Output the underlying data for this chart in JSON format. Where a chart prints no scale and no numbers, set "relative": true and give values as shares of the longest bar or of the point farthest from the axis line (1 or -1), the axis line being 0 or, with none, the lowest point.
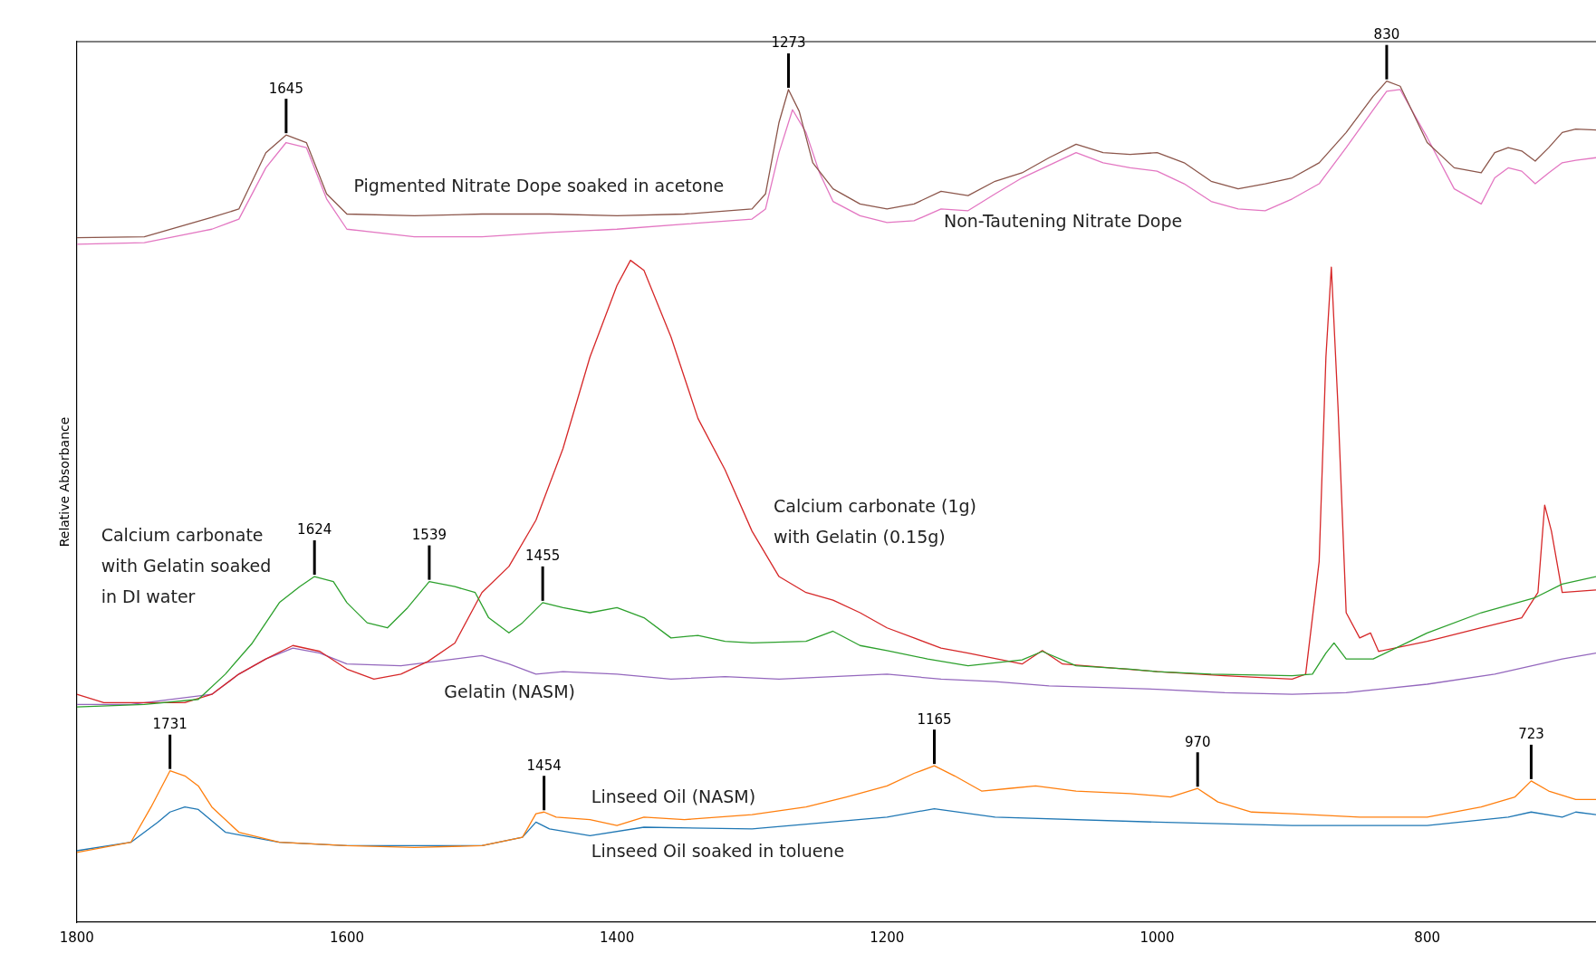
{
  "chart_data": {
    "type": "line",
    "relative": true,
    "ylabel": "Relative Absorbance",
    "xlim": [
      1800,
      675
    ],
    "xticks": [
      1800,
      1600,
      1400,
      1200,
      1000,
      800
    ],
    "line_style": "solid",
    "series": [
      {
        "name": "Pigmented Nitrate Dope soaked in acetone",
        "color": "#8c564b",
        "x": [
          1800,
          1750,
          1700,
          1680,
          1660,
          1645,
          1630,
          1615,
          1600,
          1550,
          1500,
          1450,
          1400,
          1350,
          1300,
          1290,
          1280,
          1273,
          1265,
          1255,
          1240,
          1220,
          1200,
          1180,
          1160,
          1140,
          1120,
          1100,
          1080,
          1060,
          1040,
          1020,
          1000,
          980,
          960,
          940,
          920,
          900,
          880,
          860,
          840,
          830,
          820,
          800,
          780,
          760,
          750,
          740,
          730,
          720,
          710,
          700,
          690,
          675
        ],
        "values": [
          0.814,
          0.815,
          0.838,
          0.848,
          0.915,
          0.936,
          0.927,
          0.866,
          0.842,
          0.84,
          0.842,
          0.842,
          0.84,
          0.842,
          0.848,
          0.866,
          0.951,
          0.99,
          0.964,
          0.903,
          0.872,
          0.854,
          0.848,
          0.854,
          0.869,
          0.864,
          0.881,
          0.891,
          0.909,
          0.925,
          0.915,
          0.913,
          0.915,
          0.903,
          0.881,
          0.872,
          0.878,
          0.885,
          0.903,
          0.939,
          0.982,
          1,
          0.994,
          0.927,
          0.897,
          0.891,
          0.915,
          0.921,
          0.917,
          0.905,
          0.921,
          0.939,
          0.943,
          0.942
        ]
      },
      {
        "name": "Non-Tautening Nitrate Dope",
        "color": "#e377c2",
        "x": [
          1800,
          1750,
          1700,
          1680,
          1660,
          1645,
          1630,
          1615,
          1600,
          1550,
          1500,
          1450,
          1400,
          1350,
          1300,
          1290,
          1280,
          1270,
          1260,
          1250,
          1240,
          1220,
          1200,
          1180,
          1160,
          1140,
          1120,
          1100,
          1080,
          1060,
          1040,
          1020,
          1000,
          980,
          960,
          940,
          920,
          900,
          880,
          860,
          840,
          830,
          820,
          800,
          780,
          760,
          750,
          740,
          730,
          720,
          710,
          700,
          690,
          675
        ],
        "values": [
          0.806,
          0.808,
          0.824,
          0.836,
          0.897,
          0.927,
          0.921,
          0.86,
          0.824,
          0.815,
          0.815,
          0.82,
          0.824,
          0.83,
          0.836,
          0.848,
          0.915,
          0.966,
          0.939,
          0.891,
          0.857,
          0.84,
          0.832,
          0.834,
          0.848,
          0.846,
          0.866,
          0.885,
          0.9,
          0.915,
          0.903,
          0.897,
          0.893,
          0.878,
          0.857,
          0.848,
          0.846,
          0.86,
          0.878,
          0.921,
          0.966,
          0.988,
          0.99,
          0.933,
          0.872,
          0.854,
          0.885,
          0.897,
          0.893,
          0.878,
          0.891,
          0.903,
          0.906,
          0.909
        ]
      },
      {
        "name": "Calcium carbonate with Gelatin soaked in DI water",
        "color": "#2ca02c",
        "x": [
          1800,
          1750,
          1710,
          1690,
          1670,
          1650,
          1635,
          1624,
          1610,
          1600,
          1585,
          1570,
          1555,
          1539,
          1520,
          1505,
          1495,
          1480,
          1470,
          1455,
          1440,
          1420,
          1400,
          1380,
          1360,
          1340,
          1320,
          1300,
          1260,
          1240,
          1220,
          1200,
          1170,
          1140,
          1100,
          1085,
          1060,
          1020,
          1000,
          960,
          900,
          885,
          875,
          869,
          860,
          840,
          800,
          760,
          720,
          700,
          675
        ],
        "values": [
          0.256,
          0.259,
          0.265,
          0.295,
          0.332,
          0.38,
          0.399,
          0.411,
          0.405,
          0.38,
          0.356,
          0.35,
          0.374,
          0.405,
          0.399,
          0.392,
          0.362,
          0.344,
          0.356,
          0.38,
          0.374,
          0.368,
          0.374,
          0.362,
          0.338,
          0.341,
          0.334,
          0.332,
          0.334,
          0.346,
          0.329,
          0.323,
          0.313,
          0.305,
          0.312,
          0.322,
          0.305,
          0.301,
          0.298,
          0.295,
          0.293,
          0.295,
          0.32,
          0.332,
          0.313,
          0.313,
          0.344,
          0.368,
          0.386,
          0.402,
          0.411
        ]
      },
      {
        "name": "Calcium carbonate (1g) with Gelatin (0.15g)",
        "color": "#d62728",
        "x": [
          1800,
          1780,
          1720,
          1700,
          1680,
          1660,
          1640,
          1620,
          1600,
          1580,
          1560,
          1540,
          1520,
          1500,
          1480,
          1460,
          1440,
          1420,
          1400,
          1390,
          1380,
          1360,
          1340,
          1320,
          1300,
          1280,
          1260,
          1240,
          1220,
          1200,
          1180,
          1160,
          1140,
          1100,
          1085,
          1070,
          1000,
          950,
          900,
          890,
          880,
          875,
          871,
          866,
          860,
          850,
          842,
          836,
          800,
          760,
          730,
          718,
          713,
          708,
          700,
          675
        ],
        "values": [
          0.271,
          0.261,
          0.261,
          0.271,
          0.295,
          0.313,
          0.329,
          0.322,
          0.301,
          0.289,
          0.295,
          0.31,
          0.332,
          0.392,
          0.423,
          0.478,
          0.563,
          0.672,
          0.757,
          0.787,
          0.775,
          0.696,
          0.599,
          0.538,
          0.465,
          0.411,
          0.392,
          0.383,
          0.368,
          0.35,
          0.338,
          0.326,
          0.32,
          0.307,
          0.323,
          0.307,
          0.298,
          0.293,
          0.289,
          0.295,
          0.429,
          0.672,
          0.779,
          0.611,
          0.368,
          0.338,
          0.344,
          0.322,
          0.334,
          0.35,
          0.362,
          0.392,
          0.496,
          0.465,
          0.392,
          0.395
        ]
      },
      {
        "name": "Gelatin (NASM)",
        "color": "#9467bd",
        "x": [
          1800,
          1760,
          1700,
          1680,
          1660,
          1640,
          1620,
          1600,
          1560,
          1520,
          1500,
          1480,
          1460,
          1440,
          1400,
          1360,
          1320,
          1280,
          1240,
          1200,
          1160,
          1120,
          1080,
          1040,
          1000,
          950,
          900,
          860,
          800,
          750,
          700,
          675
        ],
        "values": [
          0.259,
          0.259,
          0.271,
          0.295,
          0.313,
          0.326,
          0.32,
          0.307,
          0.305,
          0.313,
          0.317,
          0.307,
          0.295,
          0.298,
          0.295,
          0.289,
          0.292,
          0.289,
          0.292,
          0.295,
          0.289,
          0.286,
          0.281,
          0.279,
          0.277,
          0.273,
          0.271,
          0.273,
          0.283,
          0.295,
          0.313,
          0.32
        ]
      },
      {
        "name": "Linseed Oil (NASM)",
        "color": "#ff7f0e",
        "x": [
          1800,
          1760,
          1745,
          1731,
          1720,
          1710,
          1700,
          1680,
          1650,
          1600,
          1550,
          1500,
          1470,
          1460,
          1454,
          1445,
          1420,
          1400,
          1380,
          1350,
          1300,
          1260,
          1230,
          1200,
          1180,
          1165,
          1150,
          1130,
          1110,
          1090,
          1060,
          1020,
          990,
          970,
          955,
          930,
          900,
          850,
          800,
          760,
          735,
          723,
          710,
          690,
          675
        ],
        "values": [
          0.083,
          0.095,
          0.137,
          0.18,
          0.174,
          0.162,
          0.137,
          0.107,
          0.095,
          0.091,
          0.089,
          0.091,
          0.101,
          0.129,
          0.131,
          0.125,
          0.122,
          0.115,
          0.125,
          0.122,
          0.128,
          0.137,
          0.149,
          0.162,
          0.177,
          0.186,
          0.174,
          0.156,
          0.159,
          0.162,
          0.156,
          0.153,
          0.149,
          0.159,
          0.143,
          0.131,
          0.129,
          0.125,
          0.125,
          0.137,
          0.149,
          0.168,
          0.156,
          0.146,
          0.146
        ]
      },
      {
        "name": "Linseed Oil soaked in toluene",
        "color": "#1f77b4",
        "x": [
          1800,
          1760,
          1740,
          1731,
          1720,
          1710,
          1690,
          1650,
          1600,
          1500,
          1470,
          1460,
          1450,
          1420,
          1380,
          1300,
          1200,
          1165,
          1120,
          1000,
          900,
          800,
          740,
          723,
          700,
          690,
          675
        ],
        "values": [
          0.085,
          0.095,
          0.119,
          0.131,
          0.137,
          0.134,
          0.107,
          0.095,
          0.091,
          0.091,
          0.101,
          0.119,
          0.111,
          0.103,
          0.113,
          0.111,
          0.125,
          0.135,
          0.125,
          0.119,
          0.115,
          0.115,
          0.125,
          0.131,
          0.125,
          0.131,
          0.128
        ]
      }
    ],
    "annotations": [
      {
        "text": "1645",
        "x": 1645,
        "y": 0.936
      },
      {
        "text": "1273",
        "x": 1273,
        "y": 0.99
      },
      {
        "text": "830",
        "x": 830,
        "y": 1
      },
      {
        "text": "1624",
        "x": 1624,
        "y": 0.411
      },
      {
        "text": "1539",
        "x": 1539,
        "y": 0.405
      },
      {
        "text": "1455",
        "x": 1455,
        "y": 0.38
      },
      {
        "text": "1731",
        "x": 1731,
        "y": 0.18
      },
      {
        "text": "1454",
        "x": 1454,
        "y": 0.131
      },
      {
        "text": "1165",
        "x": 1165,
        "y": 0.186
      },
      {
        "text": "970",
        "x": 970,
        "y": 0.159
      },
      {
        "text": "723",
        "x": 723,
        "y": 0.168
      }
    ]
  }
}
